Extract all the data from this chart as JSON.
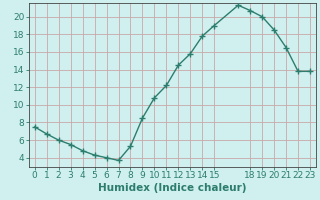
{
  "x": [
    0,
    1,
    2,
    3,
    4,
    5,
    6,
    7,
    8,
    9,
    10,
    11,
    12,
    13,
    14,
    15,
    17,
    18,
    19,
    20,
    21,
    22,
    23
  ],
  "y": [
    7.5,
    6.7,
    6.0,
    5.5,
    4.8,
    4.3,
    4.0,
    3.7,
    5.3,
    8.5,
    10.8,
    12.2,
    14.5,
    15.8,
    17.8,
    19.0,
    21.3,
    20.7,
    20.0,
    18.5,
    16.5,
    13.8,
    13.8
  ],
  "line_color": "#2d7d6e",
  "marker": "+",
  "marker_size": 4,
  "marker_linewidth": 1.0,
  "line_width": 1.0,
  "bg_color": "#cff0ee",
  "grid_color": "#c8a8a8",
  "xlabel": "Humidex (Indice chaleur)",
  "xlim": [
    -0.5,
    23.5
  ],
  "ylim": [
    3.0,
    21.5
  ],
  "xticks": [
    0,
    1,
    2,
    3,
    4,
    5,
    6,
    7,
    8,
    9,
    10,
    11,
    12,
    13,
    14,
    15,
    18,
    19,
    20,
    21,
    22,
    23
  ],
  "yticks": [
    4,
    6,
    8,
    10,
    12,
    14,
    16,
    18,
    20
  ],
  "tick_fontsize": 6.5,
  "label_fontsize": 7.5,
  "spine_color": "#444444"
}
